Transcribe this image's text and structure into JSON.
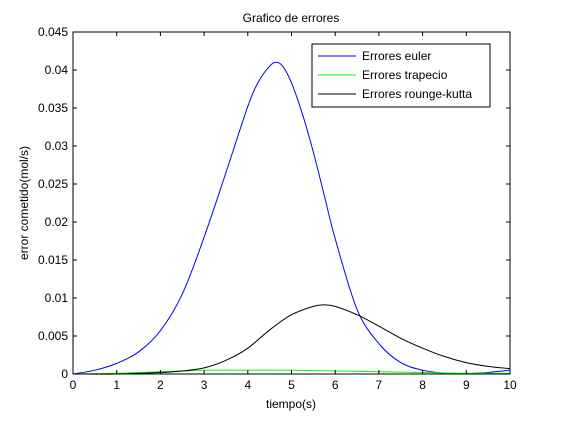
{
  "chart_data": {
    "type": "line",
    "title": "Grafico de errores",
    "xlabel": "tiempo(s)",
    "ylabel": "error cometido(mol/s)",
    "xlim": [
      0,
      10
    ],
    "ylim": [
      0,
      0.045
    ],
    "xticks": [
      "0",
      "1",
      "2",
      "3",
      "4",
      "5",
      "6",
      "7",
      "8",
      "9",
      "10"
    ],
    "yticks": [
      "0",
      "0.005",
      "0.01",
      "0.015",
      "0.02",
      "0.025",
      "0.03",
      "0.035",
      "0.04",
      "0.045"
    ],
    "legend_position": "top-right",
    "grid": false,
    "series": [
      {
        "name": "Errores euler",
        "color": "#0000ff",
        "x": [
          0,
          0.5,
          1,
          1.5,
          2,
          2.5,
          3,
          3.5,
          4,
          4.25,
          4.5,
          4.65,
          4.8,
          5,
          5.25,
          5.5,
          5.75,
          6,
          6.5,
          7,
          7.5,
          8,
          8.5,
          8.9,
          9.2,
          9.5,
          10
        ],
        "y": [
          0,
          0.0005,
          0.0014,
          0.0029,
          0.0057,
          0.0105,
          0.018,
          0.0265,
          0.0352,
          0.0385,
          0.0405,
          0.041,
          0.0405,
          0.0383,
          0.0342,
          0.0292,
          0.0235,
          0.0178,
          0.0085,
          0.004,
          0.0015,
          0.0005,
          0.0001,
          0,
          0.0001,
          0.0002,
          0.0005
        ]
      },
      {
        "name": "Errores trapecio",
        "color": "#00ff00",
        "x": [
          0,
          1,
          2,
          3,
          4,
          5,
          6,
          7,
          8,
          9,
          10
        ],
        "y": [
          0,
          0.0001,
          0.0003,
          0.0005,
          0.0005,
          0.0005,
          0.0004,
          0.0003,
          0.0002,
          0.0001,
          0.0001
        ]
      },
      {
        "name": "Errores rounge-kutta",
        "color": "#000000",
        "x": [
          0,
          1,
          2,
          2.5,
          3,
          3.5,
          4,
          4.5,
          5,
          5.5,
          5.75,
          6,
          6.5,
          7,
          7.5,
          8,
          8.5,
          9,
          9.5,
          10
        ],
        "y": [
          0,
          0,
          0.0002,
          0.0004,
          0.0008,
          0.0018,
          0.0034,
          0.0058,
          0.0078,
          0.0089,
          0.0091,
          0.0089,
          0.0078,
          0.0063,
          0.0047,
          0.0034,
          0.0023,
          0.0015,
          0.001,
          0.0007
        ]
      }
    ]
  }
}
